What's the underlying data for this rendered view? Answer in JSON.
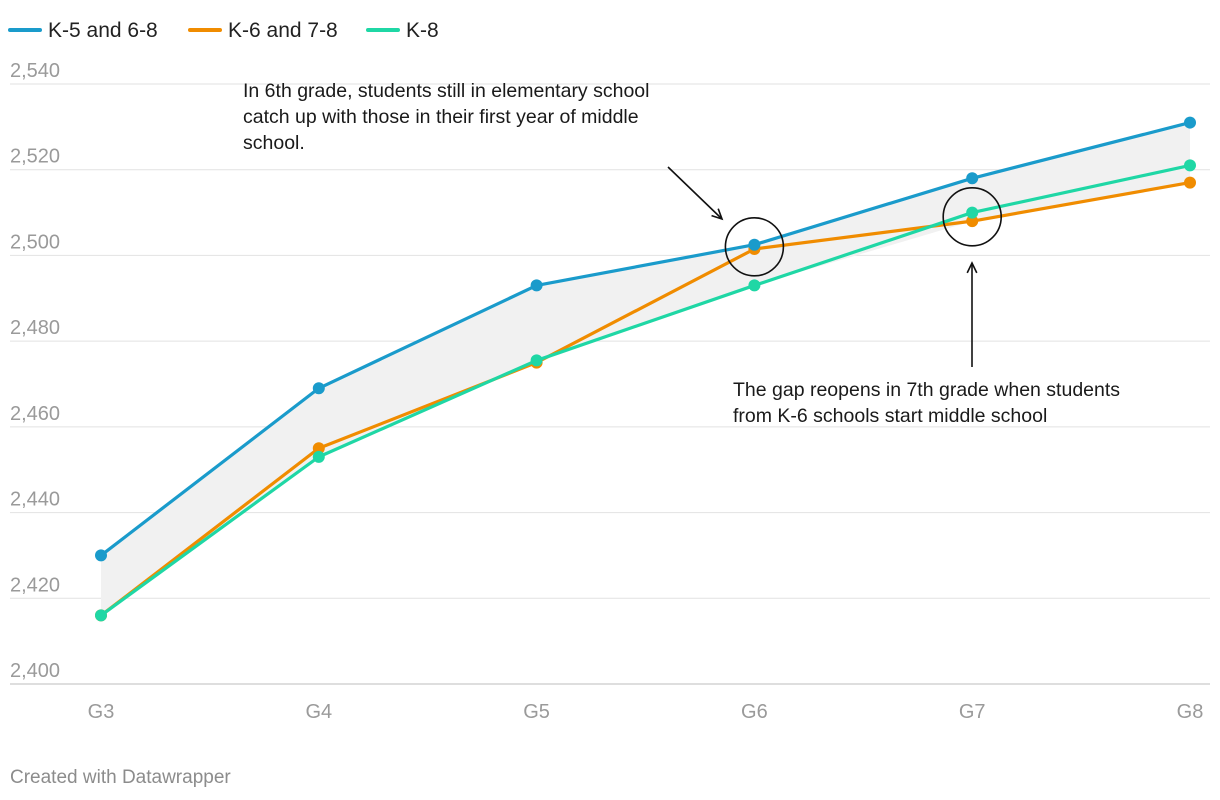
{
  "chart_data": {
    "type": "line",
    "categories": [
      "G3",
      "G4",
      "G5",
      "G6",
      "G7",
      "G8"
    ],
    "series": [
      {
        "name": "K-5 and 6-8",
        "color": "#1a9bcb",
        "values": [
          2430,
          2469,
          2493,
          2502.5,
          2518,
          2531
        ]
      },
      {
        "name": "K-6 and 7-8",
        "color": "#f08c00",
        "values": [
          2416,
          2455,
          2475,
          2501.5,
          2508,
          2517
        ]
      },
      {
        "name": "K-8",
        "color": "#1fd7a5",
        "values": [
          2416,
          2453,
          2475.5,
          2493,
          2510,
          2521
        ]
      }
    ],
    "ylim": [
      2400,
      2540
    ],
    "yticks": [
      2400,
      2420,
      2440,
      2460,
      2480,
      2500,
      2520,
      2540
    ],
    "ytick_labels": [
      "2,400",
      "2,420",
      "2,440",
      "2,460",
      "2,480",
      "2,500",
      "2,520",
      "2,540"
    ],
    "band_color": "#f1f1f1",
    "grid_color": "#e2e2e2",
    "grid": true,
    "legend_position": "top-left",
    "annotations": [
      {
        "lines": [
          "In 6th grade, students still in elementary school",
          "catch up with those in their first year of middle",
          "school."
        ]
      },
      {
        "lines": [
          "The gap reopens in 7th grade when students",
          "from K-6 schools start middle school"
        ]
      }
    ],
    "footer": "Created with Datawrapper"
  }
}
